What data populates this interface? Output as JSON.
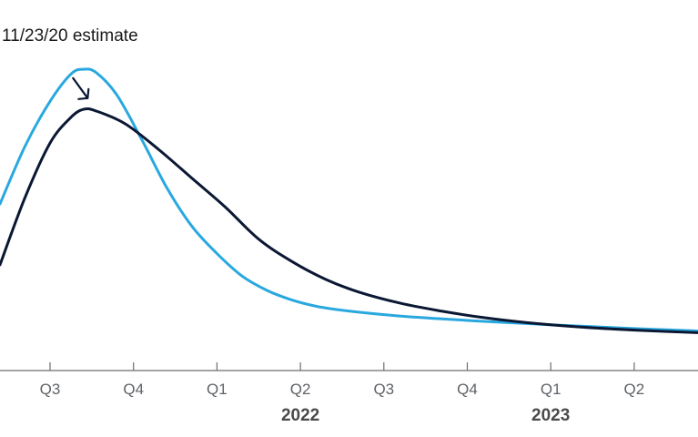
{
  "chart_data": {
    "type": "line",
    "legend_text": "11/23/20 estimate",
    "x_ticks": [
      "Q3",
      "Q4",
      "Q1",
      "Q2",
      "Q3",
      "Q4",
      "Q1",
      "Q2"
    ],
    "x_groups": [
      {
        "label": "2022",
        "span": [
          2,
          5
        ]
      },
      {
        "label": "2023",
        "span": [
          6,
          7
        ]
      }
    ],
    "xlim": [
      0,
      8.4
    ],
    "ylim": [
      0,
      100
    ],
    "grid": false,
    "series": [
      {
        "color": "#29a8e0",
        "points": [
          [
            0.0,
            52
          ],
          [
            0.3,
            70
          ],
          [
            0.6,
            84
          ],
          [
            0.85,
            92.5
          ],
          [
            1.0,
            94
          ],
          [
            1.15,
            93
          ],
          [
            1.4,
            86
          ],
          [
            1.7,
            72
          ],
          [
            2.0,
            57
          ],
          [
            2.3,
            45
          ],
          [
            2.6,
            36.5
          ],
          [
            2.9,
            29.5
          ],
          [
            3.2,
            25
          ],
          [
            3.5,
            22
          ],
          [
            3.8,
            20
          ],
          [
            4.2,
            18.5
          ],
          [
            4.8,
            17
          ],
          [
            5.5,
            15.8
          ],
          [
            6.2,
            14.8
          ],
          [
            7.0,
            13.8
          ],
          [
            7.7,
            13
          ],
          [
            8.4,
            12.3
          ]
        ]
      },
      {
        "color": "#0b1833",
        "points": [
          [
            0.0,
            33
          ],
          [
            0.3,
            54
          ],
          [
            0.6,
            71
          ],
          [
            0.85,
            79
          ],
          [
            1.0,
            81.5
          ],
          [
            1.15,
            81
          ],
          [
            1.5,
            77
          ],
          [
            1.9,
            69
          ],
          [
            2.3,
            60
          ],
          [
            2.7,
            51
          ],
          [
            3.1,
            41
          ],
          [
            3.5,
            34
          ],
          [
            3.9,
            28.5
          ],
          [
            4.3,
            24.5
          ],
          [
            4.8,
            21
          ],
          [
            5.3,
            18.5
          ],
          [
            5.8,
            16.5
          ],
          [
            6.3,
            15
          ],
          [
            7.0,
            13.5
          ],
          [
            7.7,
            12.5
          ],
          [
            8.4,
            11.8
          ]
        ]
      }
    ],
    "annotation": {
      "type": "arrow",
      "x": 1.05,
      "y": 85
    }
  },
  "colors": {
    "axis": "#6e6e6e",
    "tick_text": "#5f6368",
    "arrow": "#0b1833"
  }
}
